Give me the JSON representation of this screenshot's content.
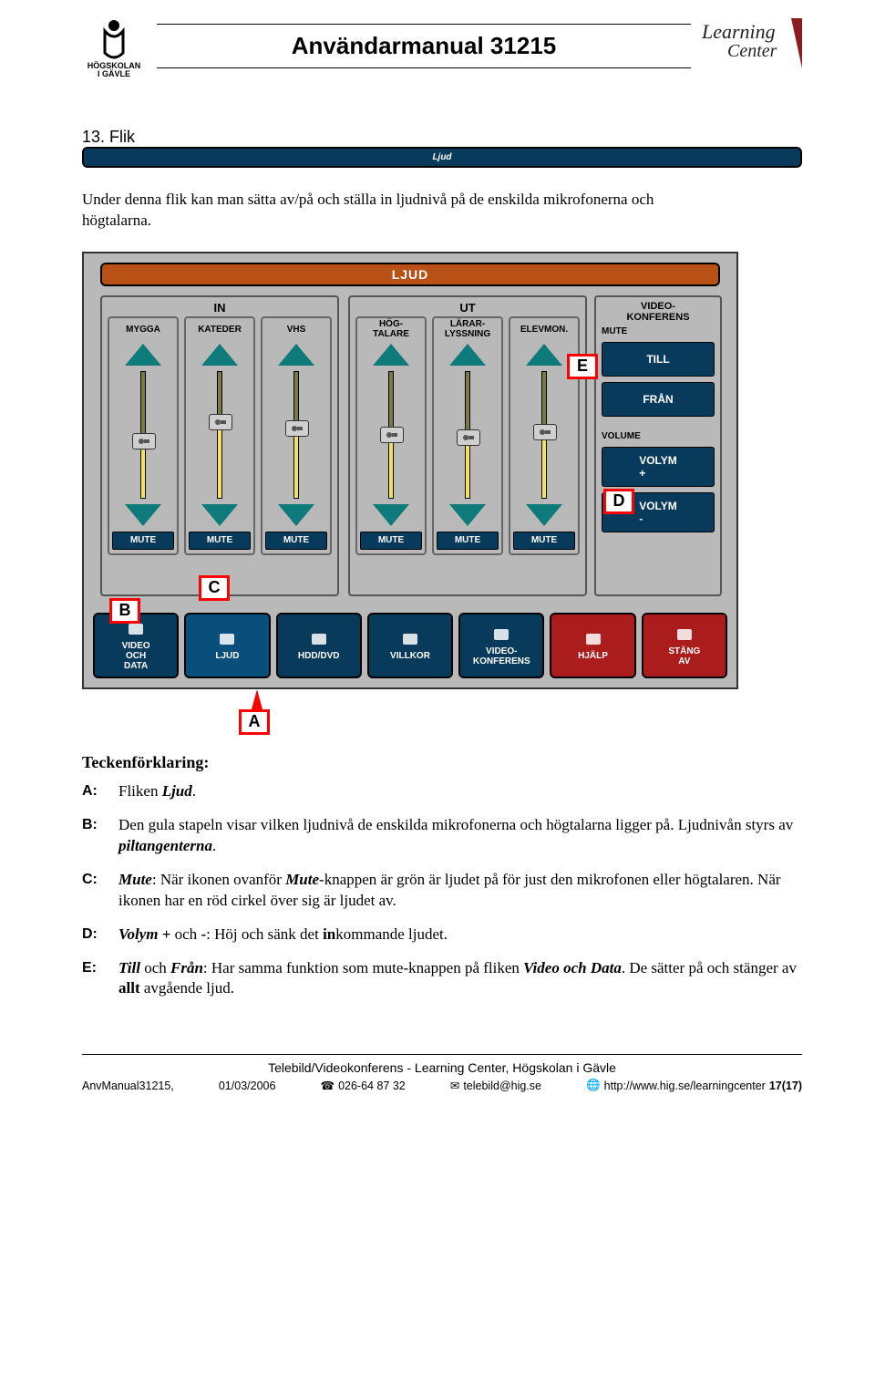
{
  "header": {
    "logo_left_line1": "HÖGSKOLAN",
    "logo_left_line2": "I GÄVLE",
    "title": "Användarmanual 31215",
    "logo_right_line1": "Learning",
    "logo_right_line2": "Center"
  },
  "section": {
    "number": "13.",
    "label_prefix": "Flik ",
    "label_italic": "Ljud"
  },
  "intro": "Under denna flik kan man sätta av/på och ställa in ljudnivå på de enskilda mikrofonerna och högtalarna.",
  "screenshot": {
    "top_bar": "LJUD",
    "panel_in_title": "IN",
    "panel_ut_title": "UT",
    "panel_vk_title": "VIDEO-\nKONFERENS",
    "channels_in": [
      {
        "label": "MYGGA",
        "level_pct": 45,
        "mute": "MUTE"
      },
      {
        "label": "KATEDER",
        "level_pct": 60,
        "mute": "MUTE"
      },
      {
        "label": "VHS",
        "level_pct": 55,
        "mute": "MUTE"
      }
    ],
    "channels_ut": [
      {
        "label": "HÖG-\nTALARE",
        "level_pct": 50,
        "mute": "MUTE"
      },
      {
        "label": "LÄRAR-\nLYSSNING",
        "level_pct": 48,
        "mute": "MUTE"
      },
      {
        "label": "ELEVMON.",
        "level_pct": 52,
        "mute": "MUTE"
      }
    ],
    "vk": {
      "mute_label": "MUTE",
      "till": "TILL",
      "fran": "FRÅN",
      "volume_label": "VOLUME",
      "vol_plus": "VOLYM\n+",
      "vol_minus": "VOLYM\n-"
    },
    "tabs": [
      {
        "label": "VIDEO\nOCH\nDATA",
        "color": "blue"
      },
      {
        "label": "LJUD",
        "color": "ljud"
      },
      {
        "label": "HDD/DVD",
        "color": "blue"
      },
      {
        "label": "VILLKOR",
        "color": "blue"
      },
      {
        "label": "VIDEO-\nKONFERENS",
        "color": "blue"
      },
      {
        "label": "HJÄLP",
        "color": "red"
      },
      {
        "label": "STÄNG\nAV",
        "color": "red"
      }
    ],
    "markers": {
      "A": "A",
      "B": "B",
      "C": "C",
      "D": "D",
      "E": "E"
    },
    "colors": {
      "panel_bg": "#b9b9b9",
      "orange_bar": "#b95016",
      "teal": "#0f7a7a",
      "slider_fill": "#f5e642",
      "btn_blue": "#073a5b",
      "btn_red": "#ab1d1d",
      "marker_border": "#ff0000"
    }
  },
  "legend": {
    "heading": "Teckenförklaring:",
    "items": [
      {
        "key": "A:",
        "html": "Fliken <span class='ital'>Ljud</span>."
      },
      {
        "key": "B:",
        "html": "Den gula stapeln visar vilken ljudnivå de enskilda mikrofonerna och högtalarna ligger på. Ljudnivån styrs av <span class='ital'>piltangenterna</span>."
      },
      {
        "key": "C:",
        "html": "<span class='ital'>Mute</span>: När ikonen ovanför <span class='ital'>Mute</span>-knappen är grön är ljudet på för just den mikrofonen eller högtalaren. När ikonen har en röd cirkel över sig är ljudet av."
      },
      {
        "key": "D:",
        "html": "<span class='ital'>Volym</span> <span class='b'>+</span> och <span class='b'>-</span>: Höj och sänk det <span class='b'>in</span>kommande ljudet."
      },
      {
        "key": "E:",
        "html": "<span class='ital'>Till</span> och <span class='ital'>Från</span>: Har samma funktion som mute-knappen på fliken <span class='ital'>Video och Data</span>. De sätter på och stänger av <span class='b'>allt</span> avgående ljud."
      }
    ]
  },
  "footer": {
    "center": "Telebild/Videokonferens - Learning Center, Högskolan i Gävle",
    "doc": "AnvManual31215,",
    "date": "01/03/2006",
    "phone": "026-64 87 32",
    "email": "telebild@hig.se",
    "url": "http://www.hig.se/learningcenter",
    "page": "17(17)"
  }
}
